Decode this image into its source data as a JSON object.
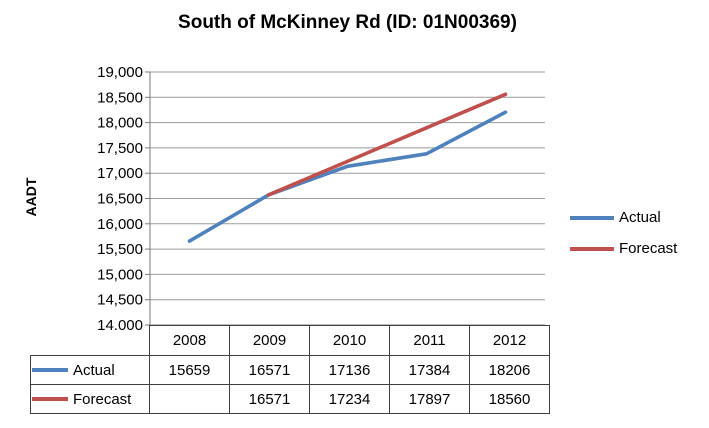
{
  "chart_data": {
    "type": "line",
    "title": "South of McKinney Rd (ID: 01N00369)",
    "ylabel": "AADT",
    "xlabel": "",
    "categories": [
      "2008",
      "2009",
      "2010",
      "2011",
      "2012"
    ],
    "series": [
      {
        "name": "Actual",
        "color": "#4F81BD",
        "values": [
          15659,
          16571,
          17136,
          17384,
          18206
        ]
      },
      {
        "name": "Forecast",
        "color": "#C0504D",
        "values": [
          null,
          16571,
          17234,
          17897,
          18560
        ]
      }
    ],
    "ylim": [
      14000,
      19000
    ],
    "ytick_step": 500,
    "grid": true,
    "legend_position": "right",
    "data_table_shown": true
  },
  "colors": {
    "actual": "#4F81BD",
    "forecast": "#C0504D",
    "gridline": "#9b9b9b",
    "axis": "#7a7a7a",
    "table_border": "#3f3f3f"
  }
}
